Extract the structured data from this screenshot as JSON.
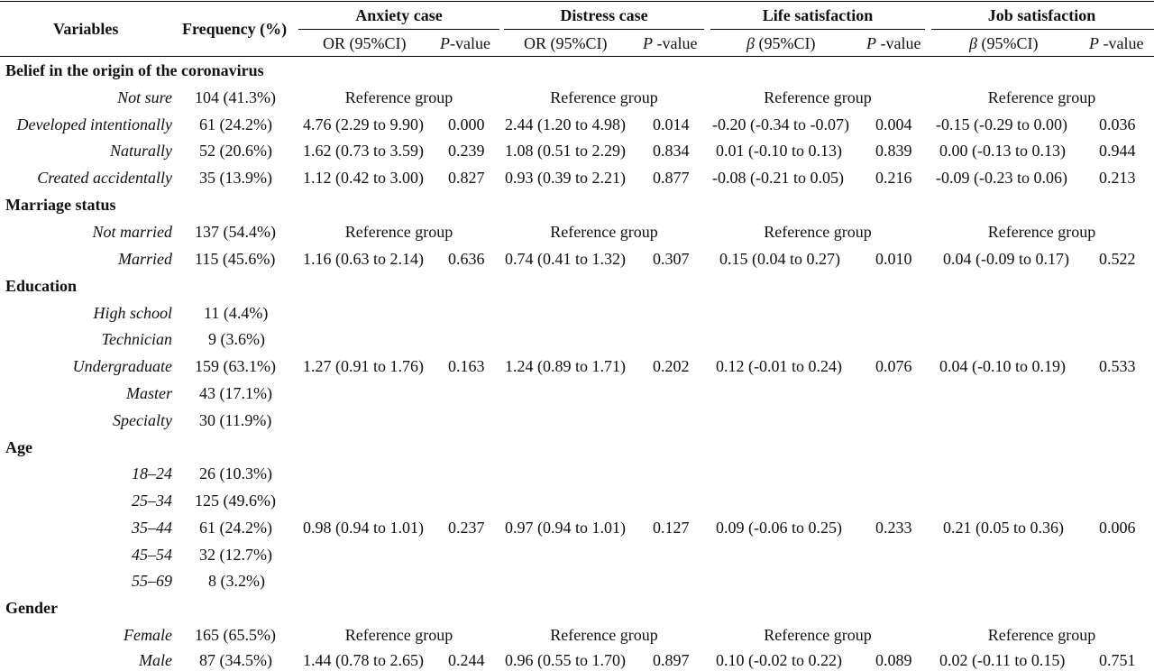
{
  "header": {
    "variables": "Variables",
    "frequency": "Frequency (%)",
    "groups": [
      "Anxiety case",
      "Distress case",
      "Life satisfaction",
      "Job satisfaction"
    ],
    "sub": [
      {
        "est": "OR (95%CI)",
        "p_italic": "P",
        "p_rest": "-value"
      },
      {
        "est": "OR (95%CI)",
        "p_italic": "P",
        "p_rest": " -value"
      },
      {
        "est_italic": "β",
        "est": " (95%CI)",
        "p_italic": "P",
        "p_rest": " -value"
      },
      {
        "est_italic": "β",
        "est": " (95%CI)",
        "p_italic": "P",
        "p_rest": " -value"
      }
    ]
  },
  "sections": [
    {
      "title": "Belief in the origin of the coronavirus",
      "rows": [
        {
          "label": "Not sure",
          "freq": "104 (41.3%)",
          "ref": "Reference group"
        },
        {
          "label": "Developed intentionally",
          "freq": "61 (24.2%)",
          "a_or": "4.76 (2.29 to 9.90)",
          "a_p": "0.000",
          "d_or": "2.44 (1.20 to 4.98)",
          "d_p": "0.014",
          "l_b": "-0.20 (-0.34 to -0.07)",
          "l_p": "0.004",
          "j_b": "-0.15 (-0.29 to 0.00)",
          "j_p": "0.036"
        },
        {
          "label": "Naturally",
          "freq": "52 (20.6%)",
          "a_or": "1.62 (0.73 to 3.59)",
          "a_p": "0.239",
          "d_or": "1.08 (0.51 to 2.29)",
          "d_p": "0.834",
          "l_b": "0.01 (-0.10 to 0.13)",
          "l_p": "0.839",
          "j_b": "0.00 (-0.13 to 0.13)",
          "j_p": "0.944"
        },
        {
          "label": "Created accidentally",
          "freq": "35 (13.9%)",
          "a_or": "1.12 (0.42 to 3.00)",
          "a_p": "0.827",
          "d_or": "0.93 (0.39 to 2.21)",
          "d_p": "0.877",
          "l_b": "-0.08 (-0.21 to 0.05)",
          "l_p": "0.216",
          "j_b": "-0.09 (-0.23 to 0.06)",
          "j_p": "0.213"
        }
      ]
    },
    {
      "title": "Marriage status",
      "rows": [
        {
          "label": "Not married",
          "freq": "137 (54.4%)",
          "ref": "Reference group"
        },
        {
          "label": "Married",
          "freq": "115 (45.6%)",
          "a_or": "1.16 (0.63 to 2.14)",
          "a_p": "0.636",
          "d_or": "0.74 (0.41 to 1.32)",
          "d_p": "0.307",
          "l_b": "0.15 (0.04 to 0.27)",
          "l_p": "0.010",
          "j_b": "0.04 (-0.09 to 0.17)",
          "j_p": "0.522"
        }
      ]
    },
    {
      "title": "Education",
      "rows": [
        {
          "label": "High school",
          "freq": "11 (4.4%)"
        },
        {
          "label": "Technician",
          "freq": "9 (3.6%)"
        },
        {
          "label": "Undergraduate",
          "freq": "159 (63.1%)",
          "a_or": "1.27 (0.91 to 1.76)",
          "a_p": "0.163",
          "d_or": "1.24 (0.89 to 1.71)",
          "d_p": "0.202",
          "l_b": "0.12 (-0.01 to 0.24)",
          "l_p": "0.076",
          "j_b": "0.04 (-0.10 to 0.19)",
          "j_p": "0.533"
        },
        {
          "label": "Master",
          "freq": "43 (17.1%)"
        },
        {
          "label": "Specialty",
          "freq": "30 (11.9%)"
        }
      ]
    },
    {
      "title": "Age",
      "rows": [
        {
          "label": "18–24",
          "freq": "26 (10.3%)"
        },
        {
          "label": "25–34",
          "freq": "125 (49.6%)"
        },
        {
          "label": "35–44",
          "freq": "61 (24.2%)",
          "a_or": "0.98 (0.94 to 1.01)",
          "a_p": "0.237",
          "d_or": "0.97 (0.94 to 1.01)",
          "d_p": "0.127",
          "l_b": "0.09 (-0.06 to 0.25)",
          "l_p": "0.233",
          "j_b": "0.21 (0.05 to 0.36)",
          "j_p": "0.006"
        },
        {
          "label": "45–54",
          "freq": "32 (12.7%)"
        },
        {
          "label": "55–69",
          "freq": "8 (3.2%)"
        }
      ]
    },
    {
      "title": "Gender",
      "rows": [
        {
          "label": "Female",
          "freq": "165 (65.5%)",
          "ref": "Reference group"
        },
        {
          "label": "Male",
          "freq": "87 (34.5%)",
          "a_or": "1.44 (0.78 to 2.65)",
          "a_p": "0.244",
          "d_or": "0.96 (0.55 to 1.70)",
          "d_p": "0.897",
          "l_b": "0.10 (-0.02 to 0.22)",
          "l_p": "0.089",
          "j_b": "0.02 (-0.11 to 0.15)",
          "j_p": "0.751"
        }
      ]
    }
  ]
}
